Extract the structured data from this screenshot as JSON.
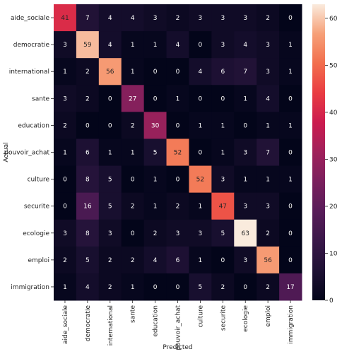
{
  "chart_data": {
    "type": "heatmap",
    "xlabel": "Predicted",
    "ylabel": "Actual",
    "x_categories": [
      "aide_sociale",
      "democratie",
      "international",
      "sante",
      "education",
      "pouvoir_achat",
      "culture",
      "securite",
      "ecologie",
      "emploi",
      "immigration"
    ],
    "y_categories": [
      "aide_sociale",
      "democratie",
      "international",
      "sante",
      "education",
      "pouvoir_achat",
      "culture",
      "securite",
      "ecologie",
      "emploi",
      "immigration"
    ],
    "values": [
      [
        41,
        7,
        4,
        4,
        3,
        2,
        3,
        3,
        3,
        2,
        0
      ],
      [
        3,
        59,
        4,
        1,
        1,
        4,
        0,
        3,
        4,
        3,
        1
      ],
      [
        1,
        2,
        56,
        1,
        0,
        0,
        4,
        6,
        7,
        3,
        1
      ],
      [
        3,
        2,
        0,
        27,
        0,
        1,
        0,
        0,
        1,
        4,
        0
      ],
      [
        2,
        0,
        0,
        2,
        30,
        0,
        1,
        1,
        0,
        1,
        1
      ],
      [
        1,
        6,
        1,
        1,
        5,
        52,
        0,
        1,
        3,
        7,
        0
      ],
      [
        0,
        8,
        5,
        0,
        1,
        0,
        52,
        3,
        1,
        1,
        1
      ],
      [
        0,
        16,
        5,
        2,
        1,
        2,
        1,
        47,
        3,
        3,
        0
      ],
      [
        3,
        8,
        3,
        0,
        2,
        3,
        3,
        5,
        63,
        2,
        0
      ],
      [
        2,
        5,
        2,
        2,
        4,
        6,
        1,
        0,
        3,
        56,
        0
      ],
      [
        1,
        4,
        2,
        1,
        0,
        0,
        5,
        2,
        0,
        2,
        17
      ]
    ],
    "colorbar": {
      "range": [
        0,
        63
      ],
      "ticks": [
        0,
        10,
        20,
        30,
        40,
        50,
        60
      ]
    },
    "colormap": "rocket"
  }
}
